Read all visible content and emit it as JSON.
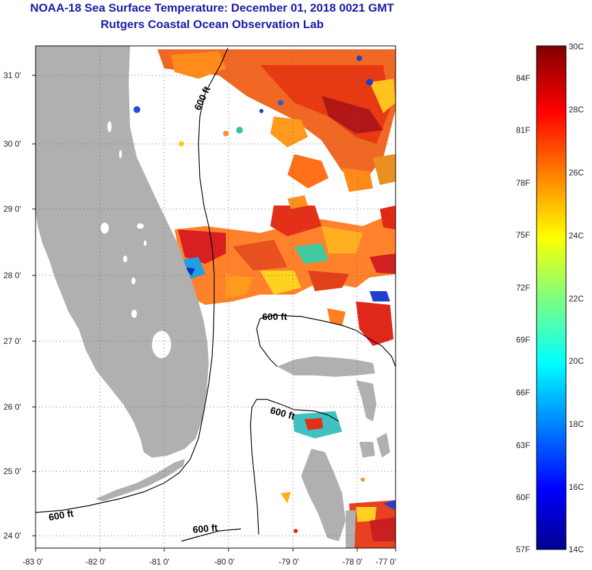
{
  "title_line1": "NOAA-18 Sea Surface Temperature:  December 01, 2018 0021 GMT",
  "title_line2": "Rutgers Coastal Ocean Observation Lab",
  "lat_labels": [
    "31 0'",
    "30 0'",
    "29 0'",
    "28 0'",
    "27 0'",
    "26 0'",
    "25 0'",
    "24 0'"
  ],
  "lon_labels": [
    "-83 0'",
    "-82 0'",
    "-81 0'",
    "-80 0'",
    "-79 0'",
    "-78 0'",
    "-77 0'"
  ],
  "depth_labels": [
    "600 ft",
    "600 ft",
    "600 ft",
    "600 ft",
    "600 ft"
  ],
  "colorbar": {
    "fahrenheit": [
      "84F",
      "81F",
      "78F",
      "75F",
      "72F",
      "69F",
      "66F",
      "63F",
      "60F",
      "57F"
    ],
    "celsius": [
      "30C",
      "28C",
      "26C",
      "24C",
      "22C",
      "20C",
      "18C",
      "16C",
      "14C"
    ],
    "min_c": 14,
    "max_c": 30
  },
  "colors": {
    "title": "#1a1aa8",
    "land": "#b0b0b0",
    "ocean_nodata": "#ffffff"
  }
}
